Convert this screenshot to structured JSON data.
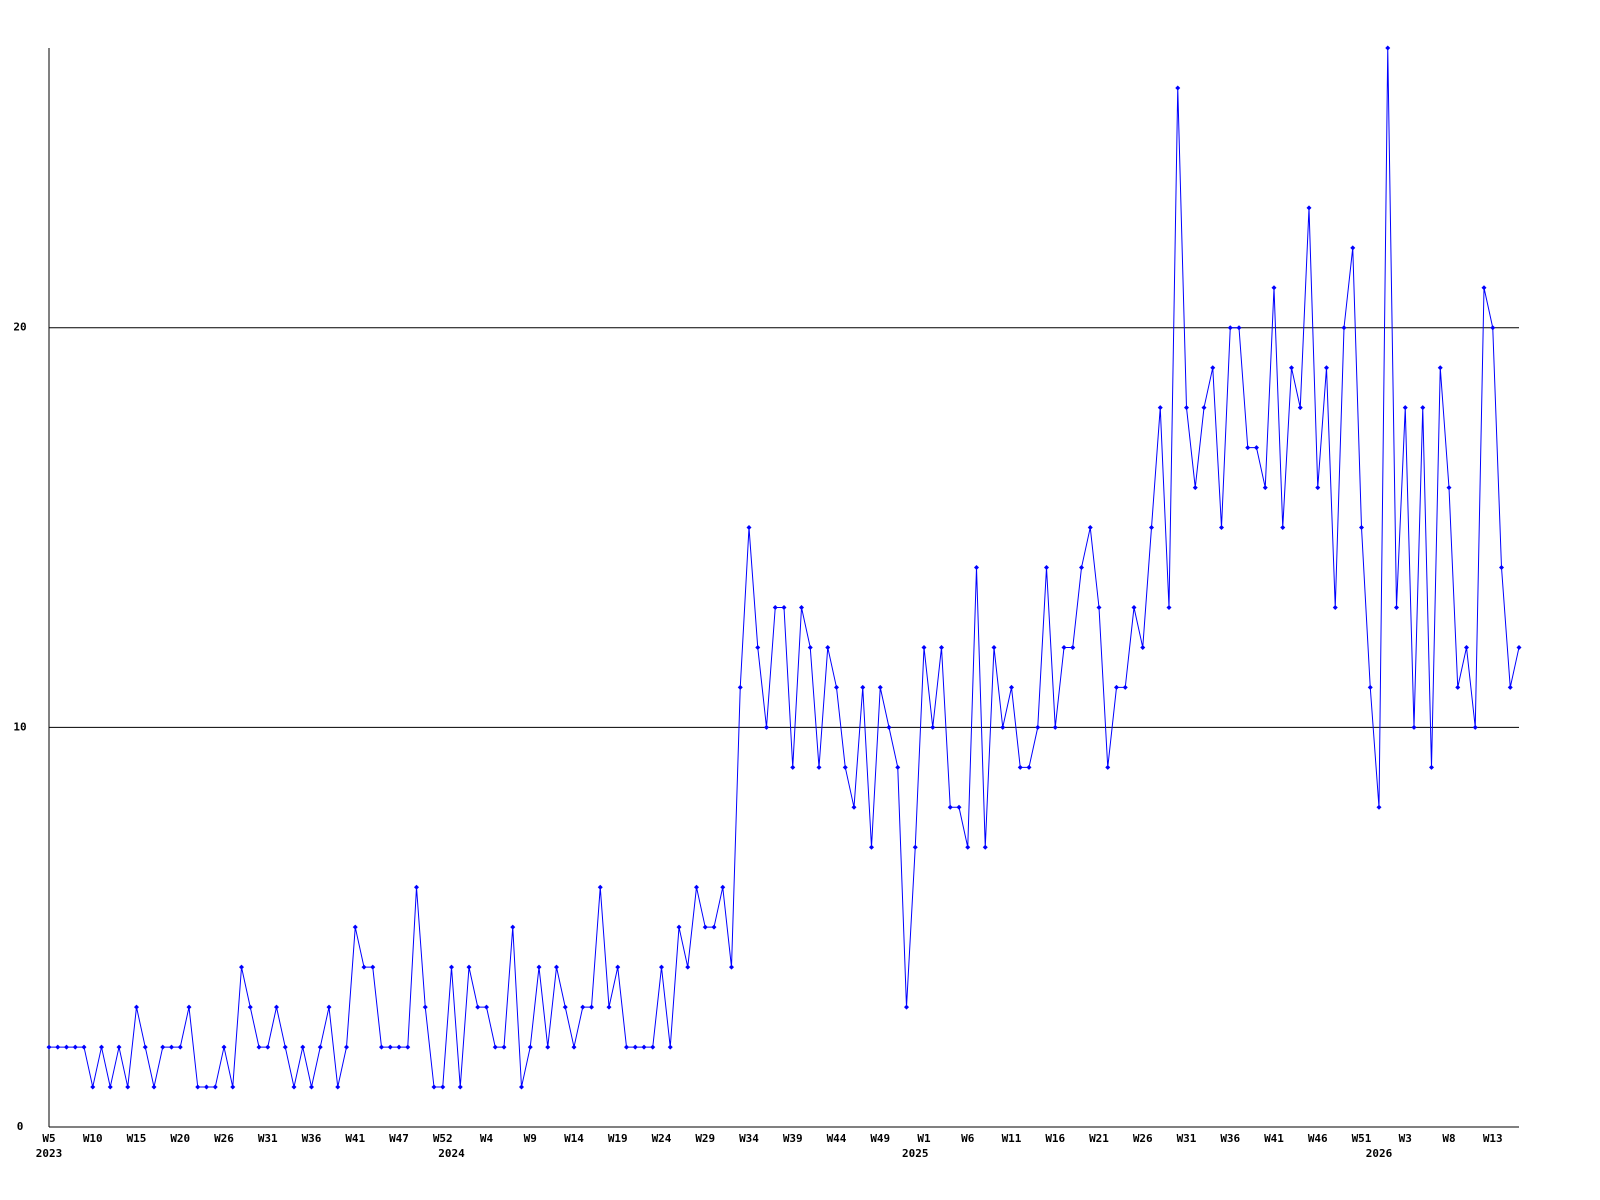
{
  "chart_data": {
    "type": "line",
    "categories": [
      "W5",
      null,
      null,
      null,
      null,
      "W10",
      null,
      null,
      null,
      null,
      "W15",
      null,
      null,
      null,
      null,
      "W20",
      null,
      null,
      null,
      null,
      "W26",
      null,
      null,
      null,
      null,
      "W31",
      null,
      null,
      null,
      null,
      "W36",
      null,
      null,
      null,
      null,
      "W41",
      null,
      null,
      null,
      null,
      "W47",
      null,
      null,
      null,
      null,
      "W52",
      null,
      null,
      null,
      null,
      "W4",
      null,
      null,
      null,
      null,
      "W9",
      null,
      null,
      null,
      null,
      "W14",
      null,
      null,
      null,
      null,
      "W19",
      null,
      null,
      null,
      null,
      "W24",
      null,
      null,
      null,
      null,
      "W29",
      null,
      null,
      null,
      null,
      "W34",
      null,
      null,
      null,
      null,
      "W39",
      null,
      null,
      null,
      null,
      "W44",
      null,
      null,
      null,
      null,
      "W49",
      null,
      null,
      null,
      null,
      "W1",
      null,
      null,
      null,
      null,
      "W6",
      null,
      null,
      null,
      null,
      "W11",
      null,
      null,
      null,
      null,
      "W16",
      null,
      null,
      null,
      null,
      "W21",
      null,
      null,
      null,
      null,
      "W26",
      null,
      null,
      null,
      null,
      "W31",
      null,
      null,
      null,
      null,
      "W36",
      null,
      null,
      null,
      null,
      "W41",
      null,
      null,
      null,
      null,
      "W46",
      null,
      null,
      null,
      null,
      "W51",
      null,
      null,
      null,
      null,
      "W3",
      null,
      null,
      null,
      null,
      "W8",
      null,
      null,
      null,
      null,
      "W13",
      null,
      null,
      null
    ],
    "years": [
      "2023",
      null,
      null,
      null,
      null,
      null,
      null,
      null,
      null,
      null,
      null,
      null,
      null,
      null,
      null,
      null,
      null,
      null,
      null,
      null,
      null,
      null,
      null,
      null,
      null,
      null,
      null,
      null,
      null,
      null,
      null,
      null,
      null,
      null,
      null,
      null,
      null,
      null,
      null,
      null,
      null,
      null,
      null,
      null,
      null,
      null,
      "2024",
      null,
      null,
      null,
      null,
      null,
      null,
      null,
      null,
      null,
      null,
      null,
      null,
      null,
      null,
      null,
      null,
      null,
      null,
      null,
      null,
      null,
      null,
      null,
      null,
      null,
      null,
      null,
      null,
      null,
      null,
      null,
      null,
      null,
      null,
      null,
      null,
      null,
      null,
      null,
      null,
      null,
      null,
      null,
      null,
      null,
      null,
      null,
      null,
      null,
      null,
      null,
      null,
      "2025",
      null,
      null,
      null,
      null,
      null,
      null,
      null,
      null,
      null,
      null,
      null,
      null,
      null,
      null,
      null,
      null,
      null,
      null,
      null,
      null,
      null,
      null,
      null,
      null,
      null,
      null,
      null,
      null,
      null,
      null,
      null,
      null,
      null,
      null,
      null,
      null,
      null,
      null,
      null,
      null,
      null,
      null,
      null,
      null,
      null,
      null,
      null,
      null,
      null,
      null,
      null,
      null,
      "2026",
      null,
      null,
      null,
      null,
      null,
      null,
      null,
      null,
      null,
      null,
      null,
      null,
      null,
      null,
      null,
      null
    ],
    "series": [
      {
        "color": "#0000ff",
        "values": [
          2,
          2,
          2,
          2,
          2,
          1,
          2,
          1,
          2,
          1,
          3,
          2,
          1,
          2,
          2,
          2,
          3,
          1,
          1,
          1,
          2,
          1,
          4,
          3,
          2,
          2,
          3,
          2,
          1,
          2,
          1,
          2,
          3,
          1,
          2,
          5,
          4,
          4,
          2,
          2,
          2,
          2,
          6,
          3,
          1,
          1,
          4,
          1,
          4,
          3,
          3,
          2,
          2,
          5,
          1,
          2,
          4,
          2,
          4,
          3,
          2,
          3,
          3,
          6,
          3,
          4,
          2,
          2,
          2,
          2,
          4,
          2,
          5,
          4,
          6,
          5,
          5,
          6,
          4,
          11,
          15,
          12,
          10,
          13,
          13,
          9,
          13,
          12,
          9,
          12,
          11,
          9,
          8,
          11,
          7,
          11,
          10,
          9,
          3,
          7,
          12,
          10,
          12,
          8,
          8,
          7,
          14,
          7,
          12,
          10,
          11,
          9,
          9,
          10,
          14,
          10,
          12,
          12,
          14,
          15,
          13,
          9,
          11,
          11,
          13,
          12,
          15,
          18,
          13,
          26,
          18,
          16,
          18,
          19,
          15,
          20,
          20,
          17,
          17,
          16,
          21,
          15,
          19,
          18,
          23,
          16,
          19,
          13,
          20,
          22,
          15,
          11,
          8,
          27,
          13,
          18,
          10,
          18,
          9,
          19,
          16,
          11,
          12,
          10,
          21,
          20,
          14,
          11,
          12
        ]
      }
    ],
    "ylim": [
      0,
      27
    ],
    "yticks": [
      0,
      10,
      20
    ],
    "grid": true
  }
}
